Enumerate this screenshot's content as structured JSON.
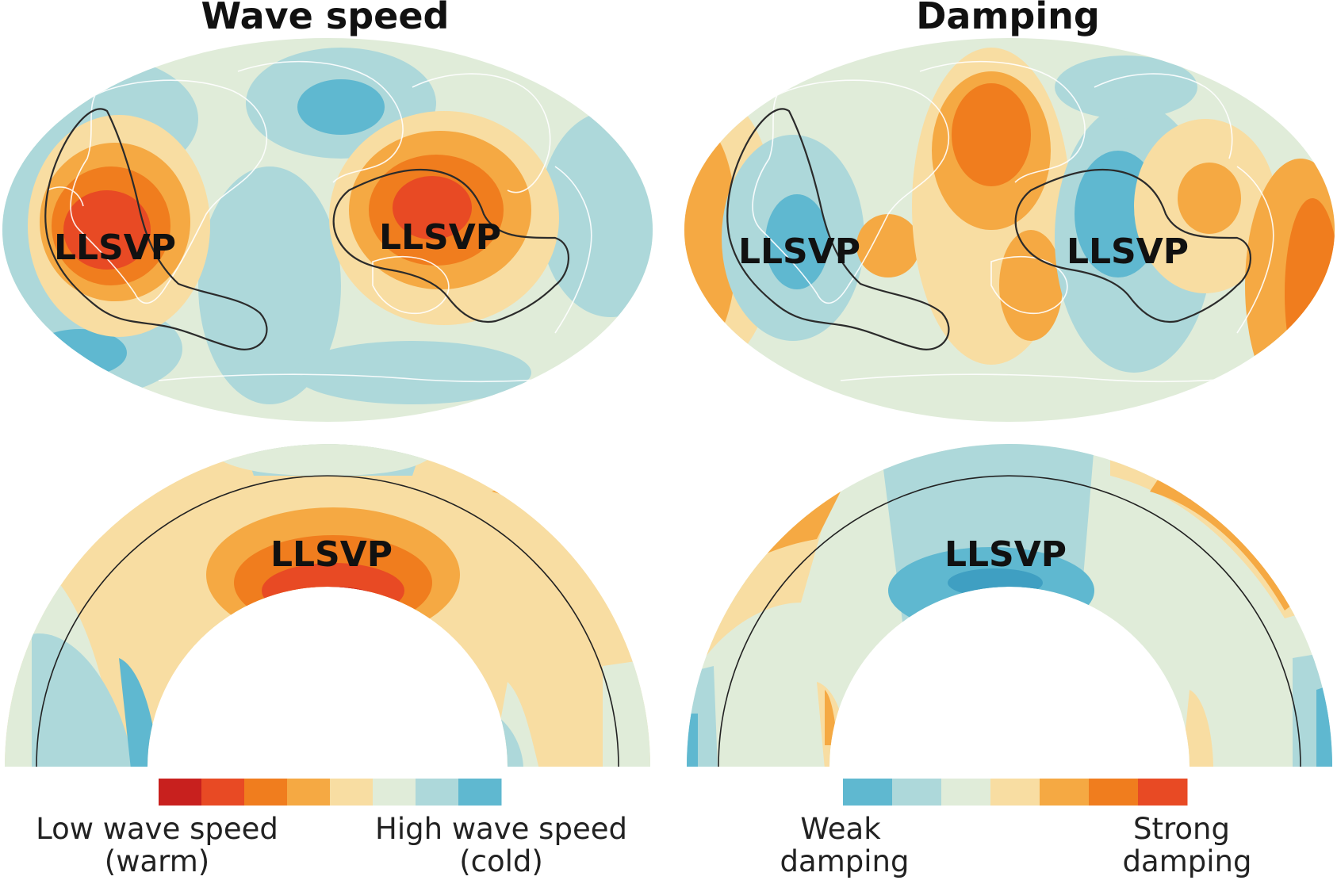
{
  "panels": {
    "left_title": "Wave speed",
    "right_title": "Damping"
  },
  "labels": {
    "llsvp": "LLSVP"
  },
  "legend_left": {
    "low_line1": "Low wave speed",
    "low_line2": "(warm)",
    "high_line1": "High wave speed",
    "high_line2": "(cold)",
    "colors": [
      "#c8201e",
      "#e84a24",
      "#f07d1e",
      "#f5a943",
      "#f8dda2",
      "#e0ecd9",
      "#add8da",
      "#5fb8d0"
    ]
  },
  "legend_right": {
    "weak_line1": "Weak",
    "weak_line2": "damping",
    "strong_line1": "Strong",
    "strong_line2": "damping",
    "colors": [
      "#5fb8d0",
      "#add8da",
      "#e0ecd9",
      "#f8dda2",
      "#f5a943",
      "#f07d1e",
      "#e84a24"
    ]
  }
}
